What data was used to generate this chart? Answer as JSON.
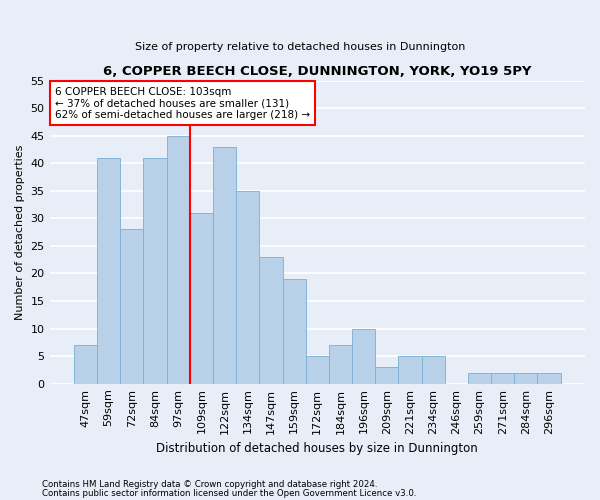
{
  "title": "6, COPPER BEECH CLOSE, DUNNINGTON, YORK, YO19 5PY",
  "subtitle": "Size of property relative to detached houses in Dunnington",
  "xlabel": "Distribution of detached houses by size in Dunnington",
  "ylabel": "Number of detached properties",
  "categories": [
    "47sqm",
    "59sqm",
    "72sqm",
    "84sqm",
    "97sqm",
    "109sqm",
    "122sqm",
    "134sqm",
    "147sqm",
    "159sqm",
    "172sqm",
    "184sqm",
    "196sqm",
    "209sqm",
    "221sqm",
    "234sqm",
    "246sqm",
    "259sqm",
    "271sqm",
    "284sqm",
    "296sqm"
  ],
  "values": [
    7,
    41,
    28,
    41,
    45,
    31,
    43,
    35,
    23,
    19,
    5,
    7,
    10,
    3,
    5,
    5,
    0,
    2,
    2,
    2,
    2
  ],
  "bar_color": "#b8d0e8",
  "bar_edge_color": "#7aafd4",
  "background_color": "#e8eef8",
  "grid_color": "#ffffff",
  "ylim": [
    0,
    55
  ],
  "yticks": [
    0,
    5,
    10,
    15,
    20,
    25,
    30,
    35,
    40,
    45,
    50,
    55
  ],
  "annotation_line1": "6 COPPER BEECH CLOSE: 103sqm",
  "annotation_line2": "← 37% of detached houses are smaller (131)",
  "annotation_line3": "62% of semi-detached houses are larger (218) →",
  "red_line_x": 4.5,
  "footnote1": "Contains HM Land Registry data © Crown copyright and database right 2024.",
  "footnote2": "Contains public sector information licensed under the Open Government Licence v3.0."
}
